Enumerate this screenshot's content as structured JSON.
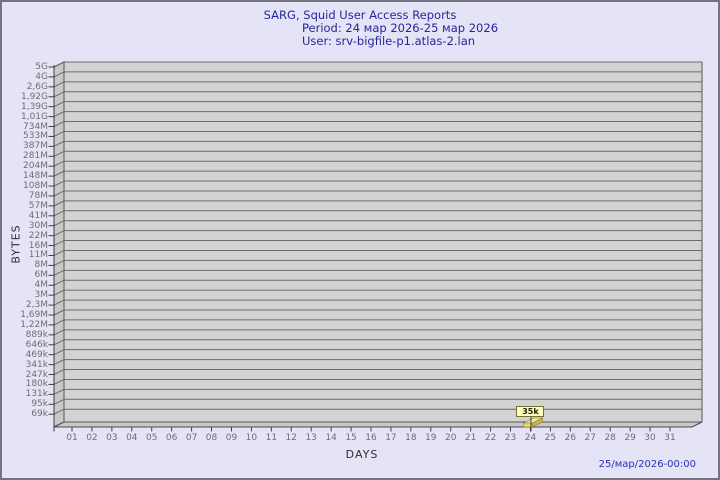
{
  "window": {
    "background_color": "#E4E4F6",
    "border_color": "#73737F"
  },
  "header": {
    "title": "SARG, Squid User Access Reports",
    "period": "Period: 24 мар 2026-25 мар 2026",
    "user": "User: srv-bigfile-p1.atlas-2.lan",
    "text_color": "#26269D"
  },
  "footer": {
    "timestamp": "25/мар/2026-00:00",
    "text_color": "#2A2FBE"
  },
  "chart_data": {
    "type": "bar",
    "title": "SARG, Squid User Access Reports",
    "xlabel": "DAYS",
    "ylabel": "BYTES",
    "y_scale": "log",
    "ylim": [
      "50k",
      "5G"
    ],
    "grid": true,
    "legend_position": "none",
    "style_3d": true,
    "plot_background": "#D3D3D3",
    "gridline_color": "#6B6B6B",
    "bar_color": "#E8D57A",
    "categories": [
      "01",
      "02",
      "03",
      "04",
      "05",
      "06",
      "07",
      "08",
      "09",
      "10",
      "11",
      "12",
      "13",
      "14",
      "15",
      "16",
      "17",
      "18",
      "19",
      "20",
      "21",
      "22",
      "23",
      "24",
      "25",
      "26",
      "27",
      "28",
      "29",
      "30",
      "31"
    ],
    "values": [
      0,
      0,
      0,
      0,
      0,
      0,
      0,
      0,
      0,
      0,
      0,
      0,
      0,
      0,
      0,
      0,
      0,
      0,
      0,
      0,
      0,
      0,
      0,
      35000,
      0,
      0,
      0,
      0,
      0,
      0,
      0
    ],
    "y_tick_labels": [
      "5G",
      "4G",
      "2,6G",
      "1,92G",
      "1,39G",
      "1,01G",
      "734M",
      "533M",
      "387M",
      "281M",
      "204M",
      "148M",
      "108M",
      "78M",
      "57M",
      "41M",
      "30M",
      "22M",
      "16M",
      "11M",
      "8M",
      "6M",
      "4M",
      "3M",
      "2,3M",
      "1,69M",
      "1,22M",
      "889k",
      "646k",
      "469k",
      "341k",
      "247k",
      "180k",
      "131k",
      "95k",
      "69k"
    ],
    "annotations": [
      {
        "category": "24",
        "text": "35k",
        "value": 35000
      }
    ]
  }
}
